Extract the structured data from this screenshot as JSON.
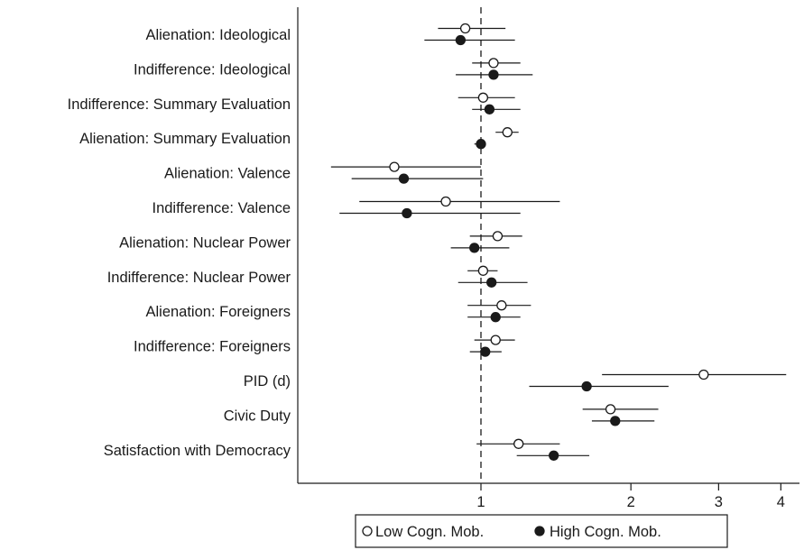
{
  "chart_data": {
    "type": "dot-whisker",
    "x_scale": "log",
    "xlim": [
      0.5,
      4.1
    ],
    "reference_line": 1,
    "x_ticks": [
      {
        "value": 1,
        "label": "1"
      },
      {
        "value": 2,
        "label": "2"
      },
      {
        "value": 3,
        "label": "3"
      },
      {
        "value": 4,
        "label": "4"
      }
    ],
    "categories": [
      "Alienation: Ideological",
      "Indifference: Ideological",
      "Indifference: Summary Evaluation",
      "Alienation: Summary Evaluation",
      "Alienation: Valence",
      "Indifference: Valence",
      "Alienation: Nuclear Power",
      "Indifference: Nuclear Power",
      "Alienation: Foreigners",
      "Indifference: Foreigners",
      "PID (d)",
      "Civic Duty",
      "Satisfaction with Democracy"
    ],
    "series": [
      {
        "name": "Low Cogn. Mob.",
        "marker": "open-circle",
        "estimates": [
          0.93,
          1.06,
          1.01,
          1.13,
          0.67,
          0.85,
          1.08,
          1.01,
          1.1,
          1.07,
          2.8,
          1.82,
          1.19
        ],
        "lower": [
          0.82,
          0.96,
          0.9,
          1.07,
          0.5,
          0.57,
          0.95,
          0.94,
          0.94,
          0.97,
          1.75,
          1.6,
          0.98
        ],
        "upper": [
          1.12,
          1.2,
          1.17,
          1.19,
          1.0,
          1.44,
          1.21,
          1.08,
          1.26,
          1.17,
          4.1,
          2.27,
          1.44
        ]
      },
      {
        "name": "High Cogn. Mob.",
        "marker": "filled-circle",
        "estimates": [
          0.91,
          1.06,
          1.04,
          1.0,
          0.7,
          0.71,
          0.97,
          1.05,
          1.07,
          1.02,
          1.63,
          1.86,
          1.4
        ],
        "lower": [
          0.77,
          0.89,
          0.96,
          0.97,
          0.55,
          0.52,
          0.87,
          0.9,
          0.94,
          0.95,
          1.25,
          1.67,
          1.18
        ],
        "upper": [
          1.17,
          1.27,
          1.2,
          1.02,
          1.01,
          1.2,
          1.14,
          1.24,
          1.2,
          1.1,
          2.38,
          2.23,
          1.65
        ]
      }
    ],
    "legend": {
      "placement": "bottom",
      "entries": [
        {
          "symbol": "○",
          "label": "Low Cogn. Mob."
        },
        {
          "symbol": "●",
          "label": "High Cogn. Mob."
        }
      ]
    }
  }
}
